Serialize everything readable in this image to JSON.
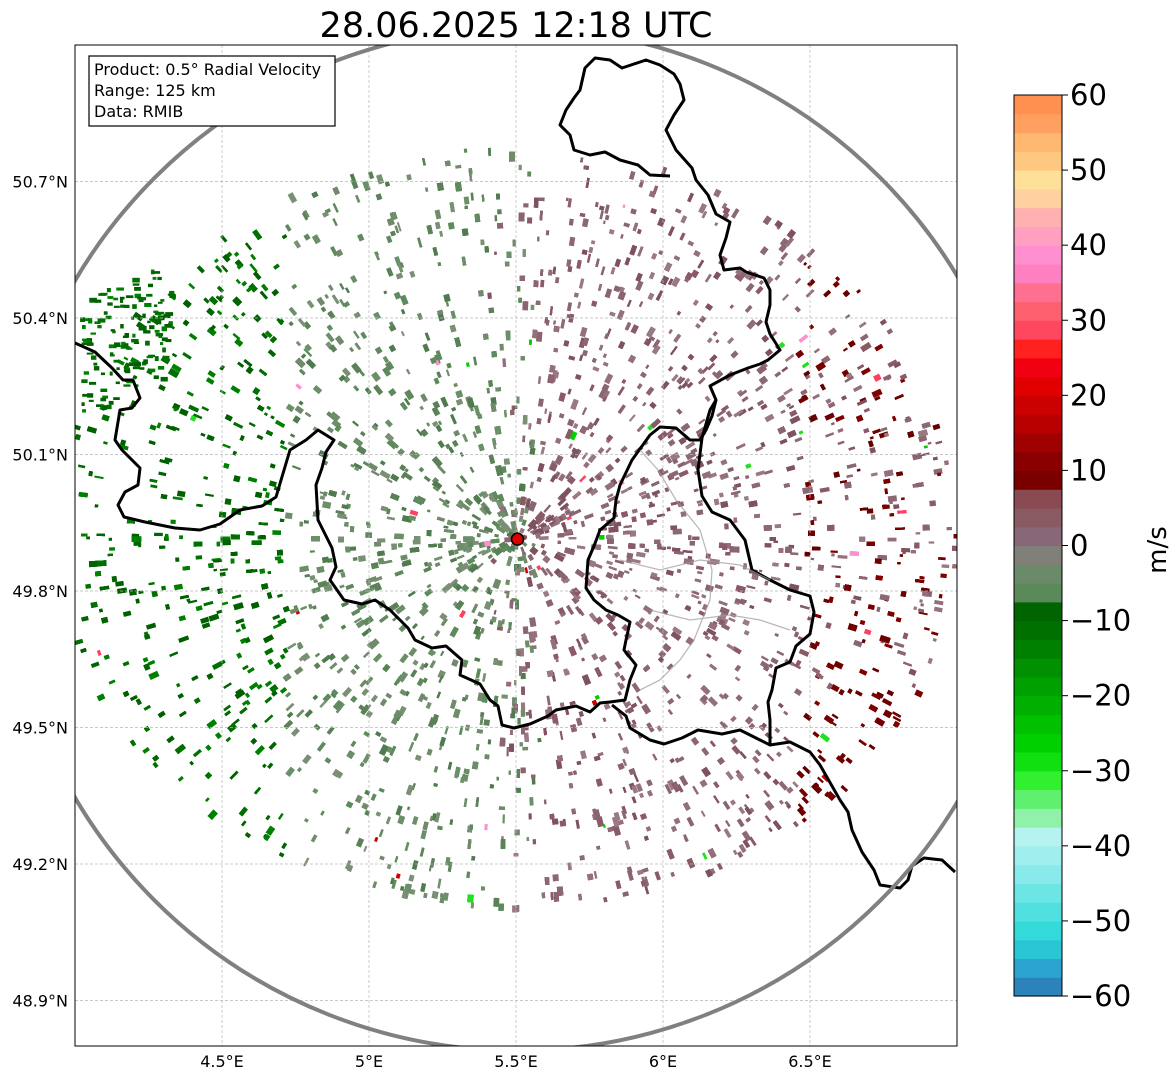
{
  "title": "28.06.2025 12:18 UTC",
  "info_box": {
    "product": "Product: 0.5° Radial Velocity",
    "range": "Range: 125 km",
    "source": "Data: RMIB"
  },
  "axes": {
    "x_ticks": [
      {
        "lon": 4.5,
        "label": "4.5°E"
      },
      {
        "lon": 5.0,
        "label": "5°E"
      },
      {
        "lon": 5.5,
        "label": "5.5°E"
      },
      {
        "lon": 6.0,
        "label": "6°E"
      },
      {
        "lon": 6.5,
        "label": "6.5°E"
      }
    ],
    "y_ticks": [
      {
        "lat": 50.7,
        "label": "50.7°N"
      },
      {
        "lat": 50.4,
        "label": "50.4°N"
      },
      {
        "lat": 50.1,
        "label": "50.1°N"
      },
      {
        "lat": 49.8,
        "label": "49.8°N"
      },
      {
        "lat": 49.5,
        "label": "49.5°N"
      },
      {
        "lat": 49.2,
        "label": "49.2°N"
      },
      {
        "lat": 48.9,
        "label": "48.9°N"
      }
    ],
    "lon_range": [
      4.0,
      7.0
    ],
    "lat_range": [
      48.8,
      51.0
    ],
    "grid": true
  },
  "radar": {
    "lon": 5.505,
    "lat": 49.914,
    "range_km": 125
  },
  "colorbar": {
    "label": "m/s",
    "min": -60,
    "max": 60,
    "ticks": [
      {
        "value": 60,
        "label": "60"
      },
      {
        "value": 50,
        "label": "50"
      },
      {
        "value": 40,
        "label": "40"
      },
      {
        "value": 30,
        "label": "30"
      },
      {
        "value": 20,
        "label": "20"
      },
      {
        "value": 10,
        "label": "10"
      },
      {
        "value": 0,
        "label": "0"
      },
      {
        "value": -10,
        "label": "−10"
      },
      {
        "value": -20,
        "label": "−20"
      },
      {
        "value": -30,
        "label": "−30"
      },
      {
        "value": -40,
        "label": "−40"
      },
      {
        "value": -50,
        "label": "−50"
      },
      {
        "value": -60,
        "label": "−60"
      }
    ],
    "colors": [
      "#2b83ba",
      "#2ba5d0",
      "#2bc6d6",
      "#33dada",
      "#50e0e0",
      "#6ce6e4",
      "#88eaea",
      "#a0eeee",
      "#b6f2f0",
      "#90f2a8",
      "#60f070",
      "#30f030",
      "#10e010",
      "#00d000",
      "#00c000",
      "#00b000",
      "#00a000",
      "#009000",
      "#008000",
      "#007000",
      "#006400",
      "#5a8a5a",
      "#6a8a6a",
      "#808078",
      "#886878",
      "#8a5a62",
      "#8a4a52",
      "#7a0000",
      "#8a0000",
      "#a00000",
      "#b80000",
      "#cc0000",
      "#e00000",
      "#f00010",
      "#ff2020",
      "#ff4860",
      "#ff6070",
      "#ff7090",
      "#ff80c0",
      "#ff90d0",
      "#ffa0c0",
      "#ffb0b0",
      "#ffd0a0",
      "#ffe098",
      "#ffc880",
      "#ffb870",
      "#ffa060",
      "#ff9050"
    ]
  }
}
